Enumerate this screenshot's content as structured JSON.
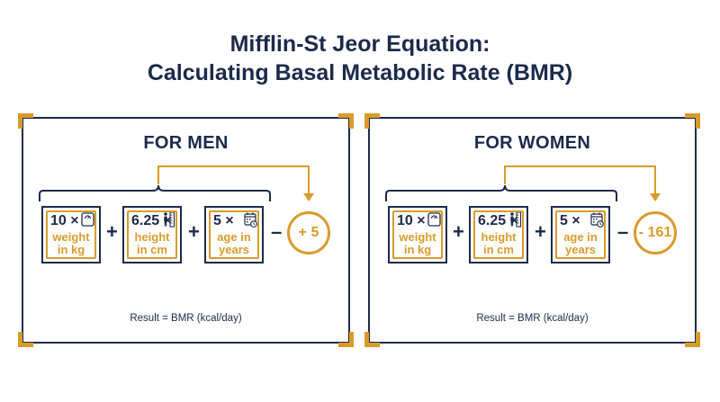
{
  "title": {
    "line1": "Mifflin-St Jeor Equation:",
    "line2": "Calculating Basal Metabolic Rate (BMR)"
  },
  "accent_color": "#d89b2b",
  "primary_color": "#1c2a4a",
  "men": {
    "heading": "FOR MEN",
    "weight": {
      "coef": "10 ×",
      "line1": "weight",
      "line2": "in kg",
      "icon": "scale-icon"
    },
    "height": {
      "coef": "6.25 ×",
      "line1": "height",
      "line2": "in cm",
      "icon": "ruler-person-icon"
    },
    "age": {
      "coef": "5 ×",
      "line1": "age in",
      "line2": "years",
      "icon": "calendar-clock-icon"
    },
    "op1": "+",
    "op2": "+",
    "op3": "–",
    "constant": "+ 5",
    "result": "Result = BMR (kcal/day)"
  },
  "women": {
    "heading": "FOR WOMEN",
    "weight": {
      "coef": "10 ×",
      "line1": "weight",
      "line2": "in kg",
      "icon": "scale-icon"
    },
    "height": {
      "coef": "6.25 ×",
      "line1": "height",
      "line2": "in cm",
      "icon": "ruler-person-icon"
    },
    "age": {
      "coef": "5 ×",
      "line1": "age in",
      "line2": "years",
      "icon": "calendar-clock-icon"
    },
    "op1": "+",
    "op2": "+",
    "op3": "–",
    "constant": "- 161",
    "result": "Result = BMR (kcal/day)"
  }
}
